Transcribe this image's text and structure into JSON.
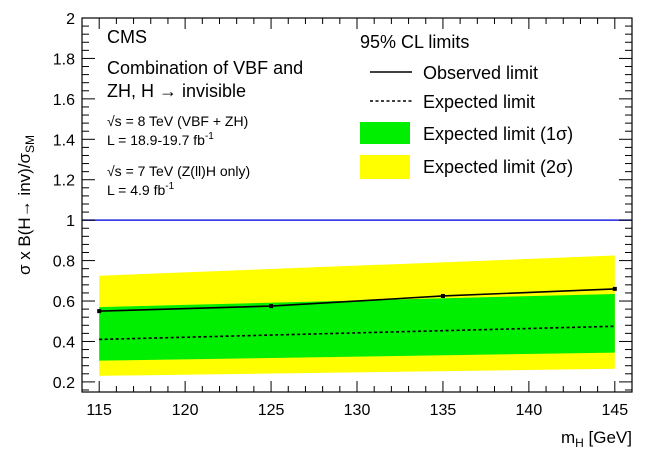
{
  "chart_data": {
    "type": "line",
    "title": "",
    "xlabel": {
      "main": "m",
      "sub": "H",
      "unit": " [GeV]"
    },
    "ylabel": {
      "pre": "σ x B(H→ inv)/σ",
      "sub": "SM"
    },
    "xlim": [
      114,
      146
    ],
    "ylim": [
      0.15,
      2.0
    ],
    "x_ticks": [
      115,
      120,
      125,
      130,
      135,
      140,
      145
    ],
    "y_ticks": [
      0.2,
      0.4,
      0.6,
      0.8,
      1,
      1.2,
      1.4,
      1.6,
      1.8,
      2
    ],
    "reference_line": {
      "y": 1,
      "color": "#1f23e0"
    },
    "series": [
      {
        "name": "Observed limit",
        "style": "solid",
        "color": "#000000",
        "x": [
          115,
          125,
          135,
          145
        ],
        "values": [
          0.55,
          0.575,
          0.625,
          0.66
        ]
      },
      {
        "name": "Expected limit",
        "style": "dashed",
        "color": "#000000",
        "x": [
          115,
          145
        ],
        "values": [
          0.41,
          0.475
        ]
      },
      {
        "name": "Expected limit (1σ)",
        "style": "band",
        "color": "#00ee00",
        "x": [
          115,
          145
        ],
        "lower": [
          0.305,
          0.345
        ],
        "upper": [
          0.57,
          0.635
        ]
      },
      {
        "name": "Expected limit (2σ)",
        "style": "band",
        "color": "#ffff00",
        "x": [
          115,
          145
        ],
        "lower": [
          0.23,
          0.265
        ],
        "upper": [
          0.725,
          0.825
        ]
      }
    ],
    "legend": {
      "placement": "top-right",
      "header": "95% CL limits",
      "entries": [
        "Observed limit",
        "Expected limit",
        "Expected limit (1σ)",
        "Expected limit (2σ)"
      ]
    },
    "annotations": {
      "experiment": "CMS",
      "combination_line1": "Combination of VBF and",
      "combination_line2": "ZH, H → invisible",
      "energy8": "√s = 8 TeV (VBF + ZH)",
      "lumi8": {
        "text": "L = 18.9-19.7 fb",
        "sup": "-1"
      },
      "energy7": "√s = 7 TeV (Z(ll)H only)",
      "lumi7": {
        "text": "L = 4.9 fb",
        "sup": "-1"
      }
    }
  }
}
